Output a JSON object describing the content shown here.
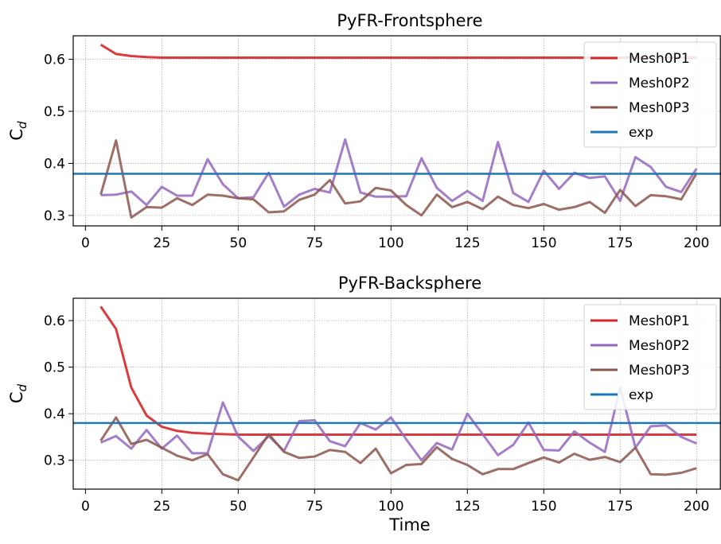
{
  "chart_data": [
    {
      "type": "line",
      "title": "PyFR-Frontsphere",
      "ylabel_main": "C",
      "ylabel_sub": "d",
      "xlabel": "",
      "xlim": [
        -4,
        208
      ],
      "ylim": [
        0.28,
        0.645
      ],
      "xticks": [
        0,
        25,
        50,
        75,
        100,
        125,
        150,
        175,
        200
      ],
      "yticks": [
        0.3,
        0.4,
        0.5,
        0.6
      ],
      "ytick_labels": [
        "0.3",
        "0.4",
        "0.5",
        "0.6"
      ],
      "grid": true,
      "legend_position": "top-right",
      "x": [
        5,
        10,
        15,
        20,
        25,
        30,
        35,
        40,
        45,
        50,
        55,
        60,
        65,
        70,
        75,
        80,
        85,
        90,
        95,
        100,
        105,
        110,
        115,
        120,
        125,
        130,
        135,
        140,
        145,
        150,
        155,
        160,
        165,
        170,
        175,
        180,
        185,
        190,
        195,
        200
      ],
      "series": [
        {
          "name": "Mesh0P1",
          "color": "#d62728",
          "values": [
            0.628,
            0.61,
            0.606,
            0.604,
            0.603,
            0.603,
            0.603,
            0.603,
            0.603,
            0.603,
            0.603,
            0.603,
            0.603,
            0.603,
            0.603,
            0.603,
            0.603,
            0.603,
            0.603,
            0.603,
            0.603,
            0.603,
            0.603,
            0.603,
            0.603,
            0.603,
            0.603,
            0.603,
            0.603,
            0.603,
            0.603,
            0.603,
            0.603,
            0.603,
            0.603,
            0.603,
            0.603,
            0.603,
            0.603,
            0.603
          ]
        },
        {
          "name": "Mesh0P2",
          "color": "#9467bd",
          "values": [
            0.339,
            0.34,
            0.346,
            0.32,
            0.355,
            0.338,
            0.338,
            0.408,
            0.36,
            0.333,
            0.335,
            0.382,
            0.317,
            0.34,
            0.351,
            0.344,
            0.446,
            0.344,
            0.336,
            0.336,
            0.337,
            0.41,
            0.353,
            0.328,
            0.347,
            0.328,
            0.441,
            0.343,
            0.326,
            0.386,
            0.351,
            0.382,
            0.372,
            0.375,
            0.328,
            0.412,
            0.393,
            0.355,
            0.345,
            0.39
          ]
        },
        {
          "name": "Mesh0P3",
          "color": "#8c564b",
          "values": [
            0.34,
            0.444,
            0.296,
            0.316,
            0.315,
            0.333,
            0.32,
            0.34,
            0.338,
            0.333,
            0.331,
            0.306,
            0.308,
            0.33,
            0.34,
            0.368,
            0.323,
            0.327,
            0.353,
            0.348,
            0.32,
            0.3,
            0.34,
            0.316,
            0.326,
            0.312,
            0.336,
            0.32,
            0.314,
            0.322,
            0.311,
            0.316,
            0.326,
            0.305,
            0.349,
            0.318,
            0.339,
            0.337,
            0.331,
            0.381
          ]
        },
        {
          "name": "exp",
          "color": "#1f77b4",
          "hline": 0.38
        }
      ]
    },
    {
      "type": "line",
      "title": "PyFR-Backsphere",
      "ylabel_main": "C",
      "ylabel_sub": "d",
      "xlabel": "Time",
      "xlim": [
        -4,
        208
      ],
      "ylim": [
        0.238,
        0.648
      ],
      "xticks": [
        0,
        25,
        50,
        75,
        100,
        125,
        150,
        175,
        200
      ],
      "yticks": [
        0.3,
        0.4,
        0.5,
        0.6
      ],
      "ytick_labels": [
        "0.3",
        "0.4",
        "0.5",
        "0.6"
      ],
      "grid": true,
      "legend_position": "top-right",
      "x": [
        5,
        10,
        15,
        20,
        25,
        30,
        35,
        40,
        45,
        50,
        55,
        60,
        65,
        70,
        75,
        80,
        85,
        90,
        95,
        100,
        105,
        110,
        115,
        120,
        125,
        130,
        135,
        140,
        145,
        150,
        155,
        160,
        165,
        170,
        175,
        180,
        185,
        190,
        195,
        200
      ],
      "series": [
        {
          "name": "Mesh0P1",
          "color": "#d62728",
          "values": [
            0.63,
            0.582,
            0.456,
            0.396,
            0.372,
            0.363,
            0.359,
            0.357,
            0.356,
            0.355,
            0.355,
            0.355,
            0.355,
            0.355,
            0.355,
            0.355,
            0.355,
            0.355,
            0.355,
            0.355,
            0.355,
            0.355,
            0.355,
            0.355,
            0.355,
            0.355,
            0.355,
            0.355,
            0.355,
            0.355,
            0.355,
            0.355,
            0.355,
            0.355,
            0.355,
            0.355,
            0.355,
            0.355,
            0.355,
            0.355
          ]
        },
        {
          "name": "Mesh0P2",
          "color": "#9467bd",
          "values": [
            0.338,
            0.352,
            0.325,
            0.365,
            0.325,
            0.353,
            0.315,
            0.315,
            0.424,
            0.351,
            0.32,
            0.352,
            0.32,
            0.384,
            0.386,
            0.341,
            0.33,
            0.38,
            0.366,
            0.392,
            0.345,
            0.3,
            0.337,
            0.323,
            0.4,
            0.356,
            0.311,
            0.333,
            0.381,
            0.322,
            0.321,
            0.362,
            0.338,
            0.318,
            0.457,
            0.327,
            0.373,
            0.375,
            0.35,
            0.336
          ]
        },
        {
          "name": "Mesh0P3",
          "color": "#8c564b",
          "values": [
            0.342,
            0.392,
            0.335,
            0.344,
            0.327,
            0.31,
            0.3,
            0.313,
            0.27,
            0.257,
            0.306,
            0.356,
            0.318,
            0.305,
            0.308,
            0.322,
            0.318,
            0.294,
            0.325,
            0.272,
            0.29,
            0.292,
            0.328,
            0.303,
            0.29,
            0.27,
            0.281,
            0.281,
            0.294,
            0.306,
            0.295,
            0.314,
            0.301,
            0.307,
            0.296,
            0.327,
            0.27,
            0.269,
            0.273,
            0.283
          ]
        },
        {
          "name": "exp",
          "color": "#1f77b4",
          "hline": 0.38
        }
      ]
    }
  ]
}
